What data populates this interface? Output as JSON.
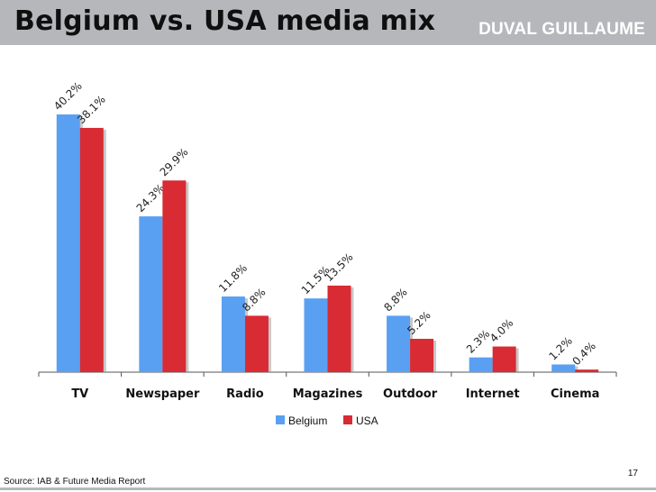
{
  "slide": {
    "title": "Belgium vs. USA media mix",
    "brand": "DUVAL GUILLAUME",
    "source": "Source: IAB & Future Media Report",
    "page_number": "17"
  },
  "colors": {
    "belgium": "#5aa0f2",
    "usa": "#d92b33",
    "header": "#b5b7bb"
  },
  "chart_data": {
    "type": "bar",
    "title": "Belgium vs. USA media mix",
    "categories": [
      "TV",
      "Newspaper",
      "Radio",
      "Magazines",
      "Outdoor",
      "Internet",
      "Cinema"
    ],
    "series": [
      {
        "name": "Belgium",
        "values": [
          40.2,
          24.3,
          11.8,
          11.5,
          8.8,
          2.3,
          1.2
        ],
        "labels": [
          "40.2%",
          "24.3%",
          "11.8%",
          "11.5%",
          "8.8%",
          "2.3%",
          "1.2%"
        ]
      },
      {
        "name": "USA",
        "values": [
          38.1,
          29.9,
          8.8,
          13.5,
          5.2,
          4.0,
          0.4
        ],
        "labels": [
          "38.1%",
          "29.9%",
          "8.8%",
          "13.5%",
          "5.2%",
          "4.0%",
          "0.4%"
        ]
      }
    ],
    "ylim": [
      0,
      45
    ],
    "xlabel": "",
    "ylabel": "",
    "grid": false,
    "legend": "bottom"
  }
}
